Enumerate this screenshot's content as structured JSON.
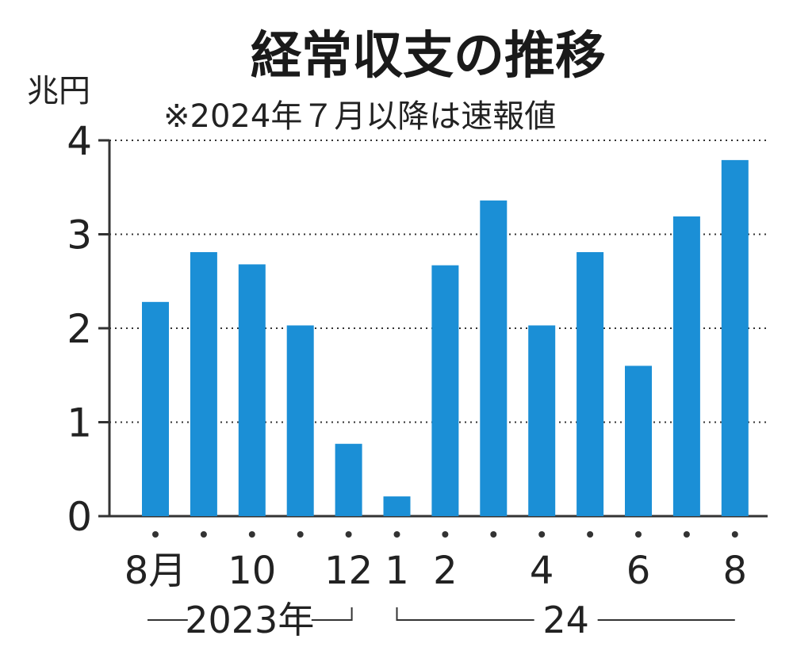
{
  "chart_data": {
    "type": "bar",
    "title": "経常収支の推移",
    "subtitle": "※2024年７月以降は速報値",
    "ylabel": "兆円",
    "ylim": [
      0,
      4
    ],
    "yticks": [
      "0",
      "1",
      "2",
      "3",
      "4"
    ],
    "grid": true,
    "bar_color": "#1b8fd6",
    "categories": [
      "2023-08",
      "2023-09",
      "2023-10",
      "2023-11",
      "2023-12",
      "2024-01",
      "2024-02",
      "2024-03",
      "2024-04",
      "2024-05",
      "2024-06",
      "2024-07",
      "2024-08"
    ],
    "tick_labels": [
      "8月",
      "",
      "10",
      "",
      "12",
      "1",
      "2",
      "",
      "4",
      "",
      "6",
      "",
      "8"
    ],
    "values": [
      2.28,
      2.81,
      2.68,
      2.03,
      0.77,
      0.21,
      2.67,
      3.36,
      2.03,
      2.81,
      1.6,
      3.19,
      3.79
    ],
    "year_groups": [
      {
        "label": "2023年",
        "start": 0,
        "end": 4
      },
      {
        "label": "24",
        "start": 5,
        "end": 12
      }
    ]
  }
}
